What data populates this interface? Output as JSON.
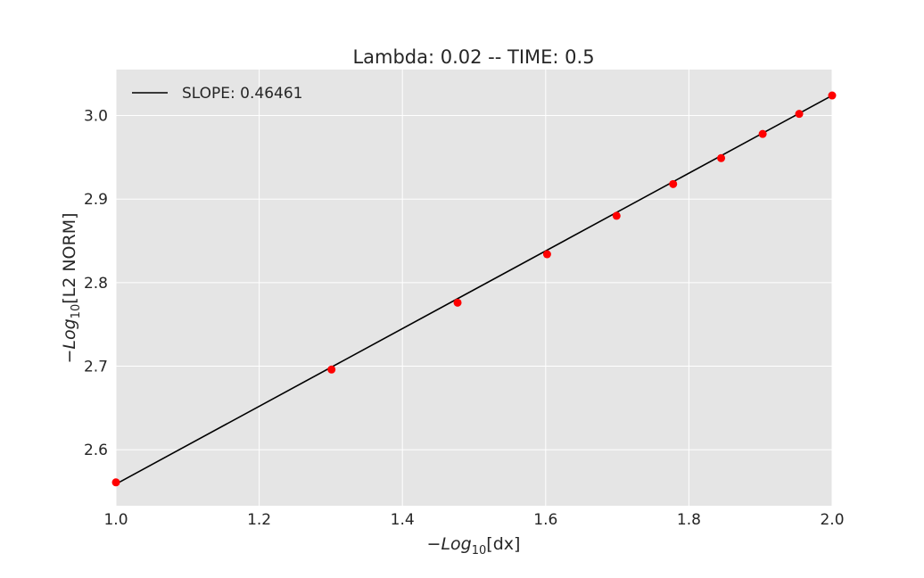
{
  "chart_data": {
    "type": "scatter",
    "title": "Lambda: 0.02 -- TIME: 0.5",
    "xlabel": {
      "prefix": "−",
      "italic": "Log",
      "sub": "10",
      "suffix": "[dx]"
    },
    "ylabel": {
      "prefix": "−",
      "italic": "Log",
      "sub": "10",
      "suffix": "[L2 NORM]"
    },
    "xlim": [
      1.0,
      2.0
    ],
    "ylim": [
      2.533,
      3.055
    ],
    "x_ticks": [
      1.0,
      1.2,
      1.4,
      1.6,
      1.8,
      2.0
    ],
    "x_tick_labels": [
      "1.0",
      "1.2",
      "1.4",
      "1.6",
      "1.8",
      "2.0"
    ],
    "y_ticks": [
      2.6,
      2.7,
      2.8,
      2.9,
      3.0
    ],
    "y_tick_labels": [
      "2.6",
      "2.7",
      "2.8",
      "2.9",
      "3.0"
    ],
    "grid": true,
    "legend_position": "top-left",
    "series": [
      {
        "type": "scatter",
        "color": "#ff0000",
        "x": [
          1.0,
          1.301,
          1.477,
          1.602,
          1.699,
          1.778,
          1.845,
          1.903,
          1.954,
          2.0
        ],
        "y": [
          2.561,
          2.696,
          2.776,
          2.834,
          2.88,
          2.918,
          2.949,
          2.978,
          3.002,
          3.024
        ]
      },
      {
        "type": "line",
        "name": "SLOPE: 0.46461",
        "color": "#000000",
        "x": [
          1.0,
          2.0
        ],
        "y": [
          2.559,
          3.024
        ]
      }
    ],
    "colors": {
      "plot_bg": "#e5e5e5",
      "grid": "#ffffff",
      "text": "#262626"
    }
  }
}
